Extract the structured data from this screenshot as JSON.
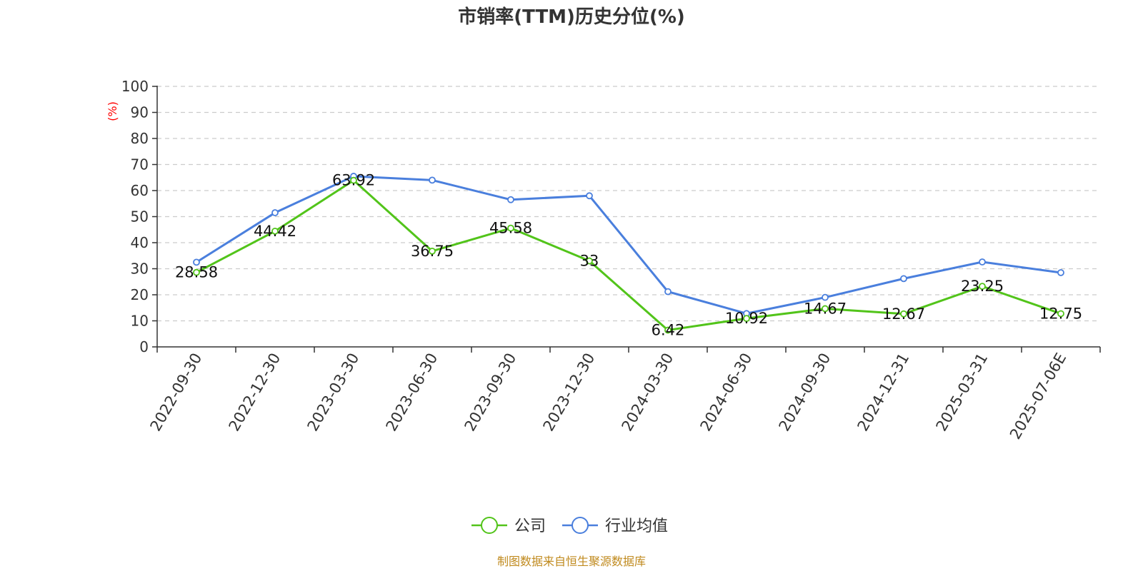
{
  "chart_data": {
    "type": "line",
    "title": "市销率(TTM)历史分位(%)",
    "ylabel": "(%)",
    "ylim": [
      0,
      100
    ],
    "yticks": [
      0,
      10,
      20,
      30,
      40,
      50,
      60,
      70,
      80,
      90,
      100
    ],
    "categories": [
      "2022-09-30",
      "2022-12-30",
      "2023-03-30",
      "2023-06-30",
      "2023-09-30",
      "2023-12-30",
      "2024-03-30",
      "2024-06-30",
      "2024-09-30",
      "2024-12-31",
      "2025-03-31",
      "2025-07-06E"
    ],
    "series": [
      {
        "name": "公司",
        "color": "#52c41a",
        "values": [
          28.58,
          44.42,
          63.92,
          36.75,
          45.58,
          33,
          6.42,
          10.92,
          14.67,
          12.67,
          23.25,
          12.75
        ],
        "labels": [
          "28.58",
          "44.42",
          "63.92",
          "36.75",
          "45.58",
          "33",
          "6.42",
          "10.92",
          "14.67",
          "12.67",
          "23.25",
          "12.75"
        ]
      },
      {
        "name": "行业均值",
        "color": "#4a7fdd",
        "values": [
          32.5,
          51.5,
          65.5,
          64,
          56.5,
          58,
          21.2,
          12.8,
          19,
          26.2,
          32.6,
          28.5
        ]
      }
    ],
    "grid": true,
    "legend_position": "bottom-center",
    "source": "制图数据来自恒生聚源数据库"
  }
}
